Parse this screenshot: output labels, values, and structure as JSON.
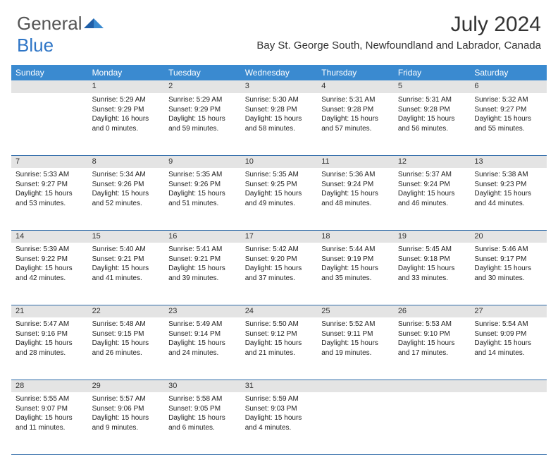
{
  "brand": {
    "part1": "General",
    "part2": "Blue"
  },
  "title": "July 2024",
  "location": "Bay St. George South, Newfoundland and Labrador, Canada",
  "header_bg": "#3a8ad0",
  "border_color": "#2e6aa8",
  "daynum_bg": "#e4e4e4",
  "weekdays": [
    "Sunday",
    "Monday",
    "Tuesday",
    "Wednesday",
    "Thursday",
    "Friday",
    "Saturday"
  ],
  "weeks": [
    [
      null,
      {
        "n": "1",
        "sr": "5:29 AM",
        "ss": "9:29 PM",
        "dl": "16 hours and 0 minutes."
      },
      {
        "n": "2",
        "sr": "5:29 AM",
        "ss": "9:29 PM",
        "dl": "15 hours and 59 minutes."
      },
      {
        "n": "3",
        "sr": "5:30 AM",
        "ss": "9:28 PM",
        "dl": "15 hours and 58 minutes."
      },
      {
        "n": "4",
        "sr": "5:31 AM",
        "ss": "9:28 PM",
        "dl": "15 hours and 57 minutes."
      },
      {
        "n": "5",
        "sr": "5:31 AM",
        "ss": "9:28 PM",
        "dl": "15 hours and 56 minutes."
      },
      {
        "n": "6",
        "sr": "5:32 AM",
        "ss": "9:27 PM",
        "dl": "15 hours and 55 minutes."
      }
    ],
    [
      {
        "n": "7",
        "sr": "5:33 AM",
        "ss": "9:27 PM",
        "dl": "15 hours and 53 minutes."
      },
      {
        "n": "8",
        "sr": "5:34 AM",
        "ss": "9:26 PM",
        "dl": "15 hours and 52 minutes."
      },
      {
        "n": "9",
        "sr": "5:35 AM",
        "ss": "9:26 PM",
        "dl": "15 hours and 51 minutes."
      },
      {
        "n": "10",
        "sr": "5:35 AM",
        "ss": "9:25 PM",
        "dl": "15 hours and 49 minutes."
      },
      {
        "n": "11",
        "sr": "5:36 AM",
        "ss": "9:24 PM",
        "dl": "15 hours and 48 minutes."
      },
      {
        "n": "12",
        "sr": "5:37 AM",
        "ss": "9:24 PM",
        "dl": "15 hours and 46 minutes."
      },
      {
        "n": "13",
        "sr": "5:38 AM",
        "ss": "9:23 PM",
        "dl": "15 hours and 44 minutes."
      }
    ],
    [
      {
        "n": "14",
        "sr": "5:39 AM",
        "ss": "9:22 PM",
        "dl": "15 hours and 42 minutes."
      },
      {
        "n": "15",
        "sr": "5:40 AM",
        "ss": "9:21 PM",
        "dl": "15 hours and 41 minutes."
      },
      {
        "n": "16",
        "sr": "5:41 AM",
        "ss": "9:21 PM",
        "dl": "15 hours and 39 minutes."
      },
      {
        "n": "17",
        "sr": "5:42 AM",
        "ss": "9:20 PM",
        "dl": "15 hours and 37 minutes."
      },
      {
        "n": "18",
        "sr": "5:44 AM",
        "ss": "9:19 PM",
        "dl": "15 hours and 35 minutes."
      },
      {
        "n": "19",
        "sr": "5:45 AM",
        "ss": "9:18 PM",
        "dl": "15 hours and 33 minutes."
      },
      {
        "n": "20",
        "sr": "5:46 AM",
        "ss": "9:17 PM",
        "dl": "15 hours and 30 minutes."
      }
    ],
    [
      {
        "n": "21",
        "sr": "5:47 AM",
        "ss": "9:16 PM",
        "dl": "15 hours and 28 minutes."
      },
      {
        "n": "22",
        "sr": "5:48 AM",
        "ss": "9:15 PM",
        "dl": "15 hours and 26 minutes."
      },
      {
        "n": "23",
        "sr": "5:49 AM",
        "ss": "9:14 PM",
        "dl": "15 hours and 24 minutes."
      },
      {
        "n": "24",
        "sr": "5:50 AM",
        "ss": "9:12 PM",
        "dl": "15 hours and 21 minutes."
      },
      {
        "n": "25",
        "sr": "5:52 AM",
        "ss": "9:11 PM",
        "dl": "15 hours and 19 minutes."
      },
      {
        "n": "26",
        "sr": "5:53 AM",
        "ss": "9:10 PM",
        "dl": "15 hours and 17 minutes."
      },
      {
        "n": "27",
        "sr": "5:54 AM",
        "ss": "9:09 PM",
        "dl": "15 hours and 14 minutes."
      }
    ],
    [
      {
        "n": "28",
        "sr": "5:55 AM",
        "ss": "9:07 PM",
        "dl": "15 hours and 11 minutes."
      },
      {
        "n": "29",
        "sr": "5:57 AM",
        "ss": "9:06 PM",
        "dl": "15 hours and 9 minutes."
      },
      {
        "n": "30",
        "sr": "5:58 AM",
        "ss": "9:05 PM",
        "dl": "15 hours and 6 minutes."
      },
      {
        "n": "31",
        "sr": "5:59 AM",
        "ss": "9:03 PM",
        "dl": "15 hours and 4 minutes."
      },
      null,
      null,
      null
    ]
  ],
  "labels": {
    "sunrise": "Sunrise:",
    "sunset": "Sunset:",
    "daylight": "Daylight:"
  }
}
